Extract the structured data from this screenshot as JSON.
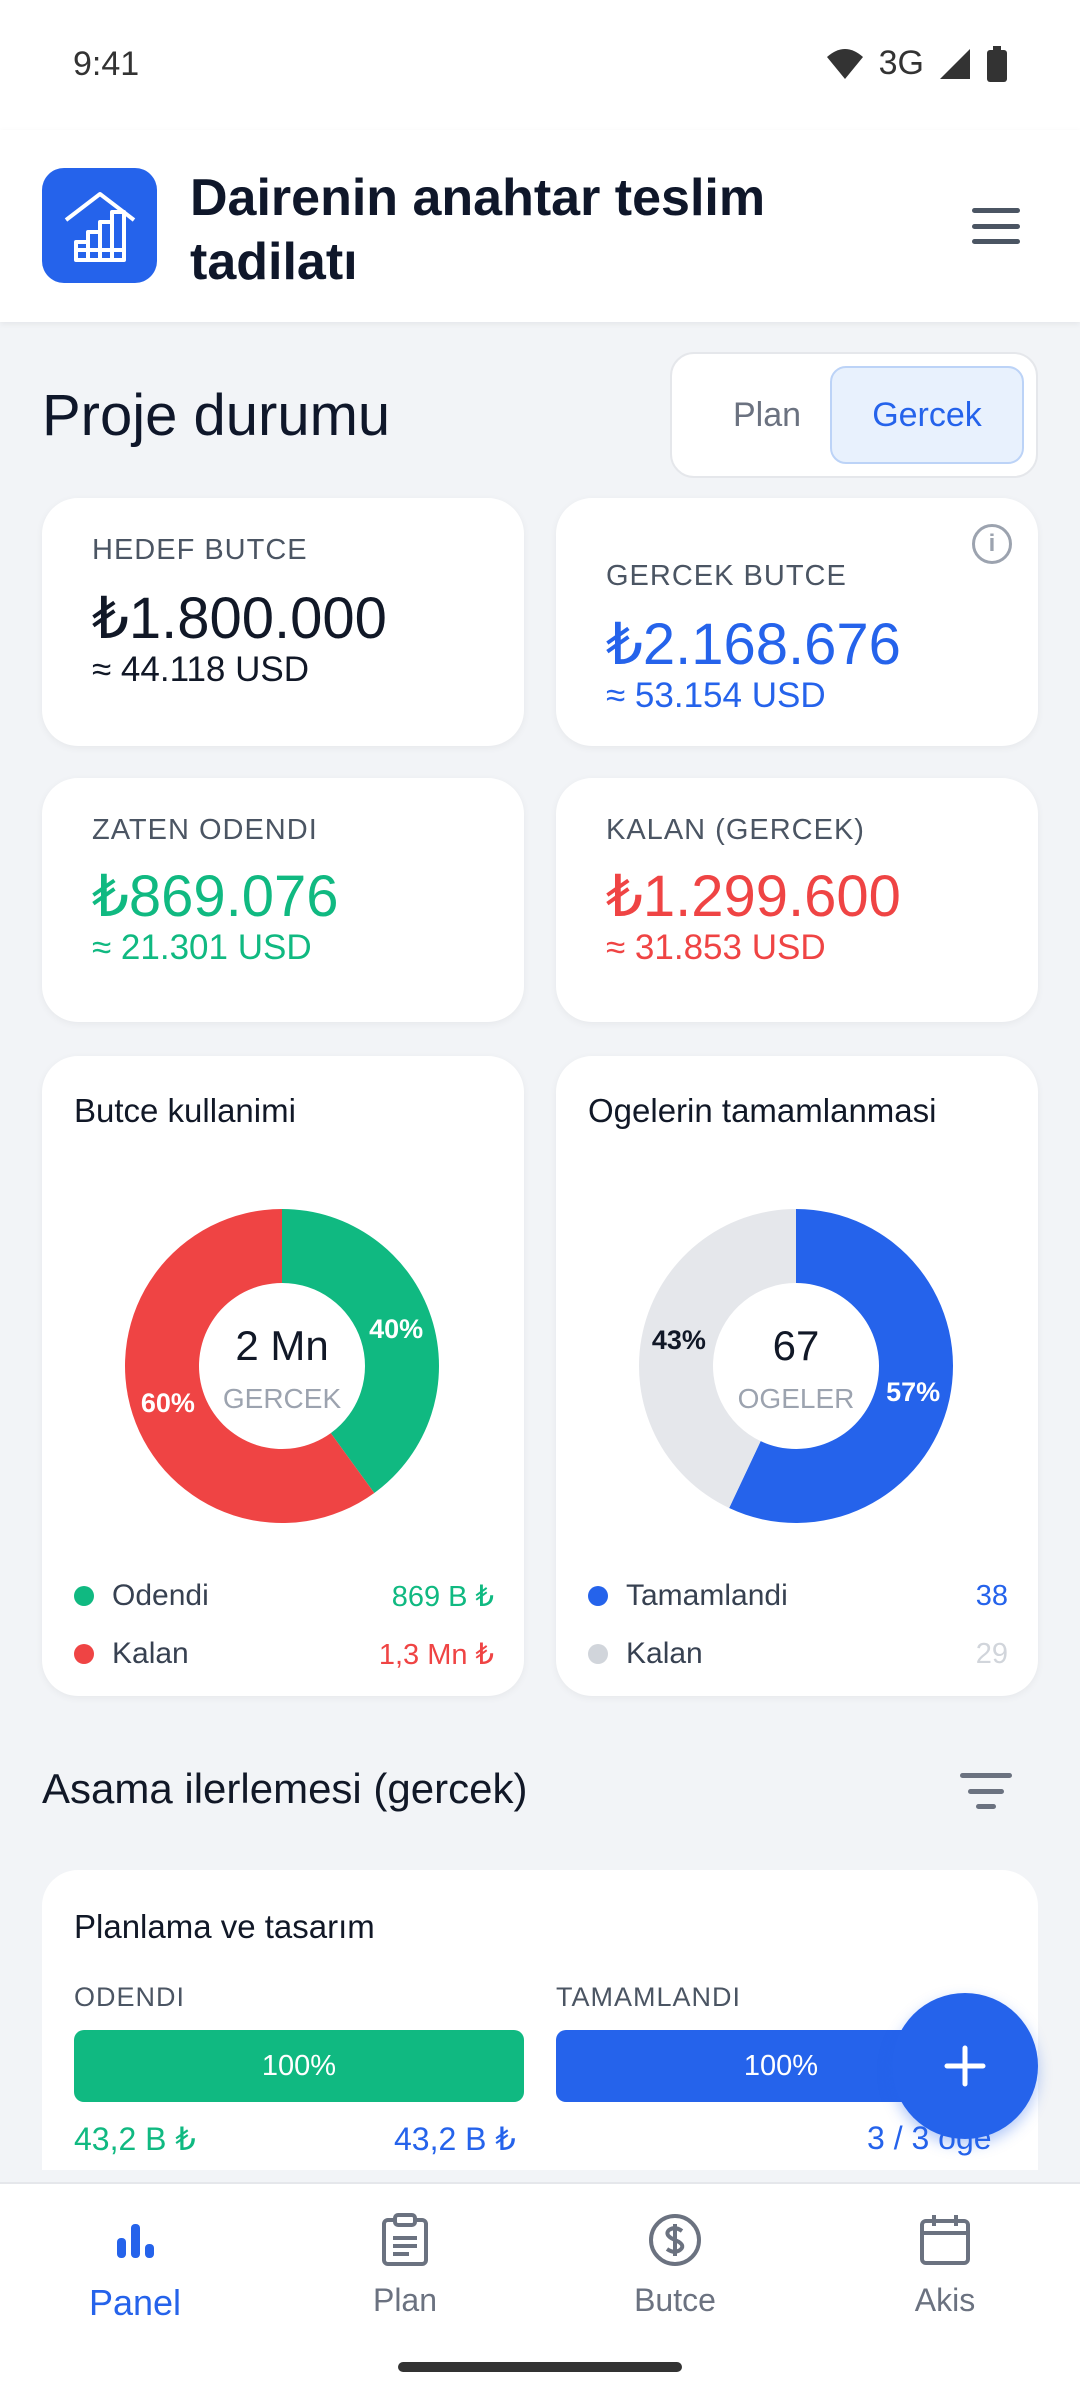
{
  "status_bar": {
    "time": "9:41",
    "network": "3G"
  },
  "header": {
    "title": "Dairenin anahtar teslim tadilatı",
    "logo_icon": "house-chart-icon",
    "menu_icon": "hamburger-menu-icon"
  },
  "overview": {
    "title": "Proje durumu",
    "toggle": {
      "plan_label": "Plan",
      "actual_label": "Gercek",
      "selected": "Gercek"
    }
  },
  "metrics": {
    "target": {
      "label": "HEDEF BUTCE",
      "value": "₺1.800.000",
      "usd": "≈ 44.118 USD",
      "color": "#111827"
    },
    "actual": {
      "label": "GERCEK BUTCE",
      "value": "₺2.168.676",
      "usd": "≈ 53.154 USD",
      "color": "#2563eb"
    },
    "paid": {
      "label": "ZATEN ODENDI",
      "value": "₺869.076",
      "usd": "≈ 21.301 USD",
      "color": "#10b981"
    },
    "remaining": {
      "label": "KALAN (GERCEK)",
      "value": "₺1.299.600",
      "usd": "≈ 31.853 USD",
      "color": "#ef4444"
    }
  },
  "charts": {
    "budget": {
      "title": "Butce kullanimi",
      "center_value": "2 Mn",
      "center_label": "GERCEK",
      "legend": [
        {
          "label": "Odendi",
          "value": "869 B ₺",
          "color": "#10b981"
        },
        {
          "label": "Kalan",
          "value": "1,3 Mn ₺",
          "color": "#ef4444"
        }
      ]
    },
    "items": {
      "title": "Ogelerin tamamlanmasi",
      "center_value": "67",
      "center_label": "OGELER",
      "legend": [
        {
          "label": "Tamamlandi",
          "value": "38",
          "color": "#2563eb"
        },
        {
          "label": "Kalan",
          "value": "29",
          "color": "#d1d5db"
        }
      ]
    }
  },
  "chart_data": [
    {
      "type": "pie",
      "title": "Butce kullanimi",
      "categories": [
        "Odendi",
        "Kalan"
      ],
      "values": [
        40,
        60
      ],
      "unit": "%",
      "colors": [
        "#10b981",
        "#ef4444"
      ],
      "slice_labels": [
        "40%",
        "60%"
      ]
    },
    {
      "type": "pie",
      "title": "Ogelerin tamamlanmasi",
      "categories": [
        "Tamamlandi",
        "Kalan"
      ],
      "values": [
        57,
        43
      ],
      "unit": "%",
      "colors": [
        "#2563eb",
        "#e5e7eb"
      ],
      "slice_labels": [
        "57%",
        "43%"
      ]
    }
  ],
  "phases": {
    "title": "Asama ilerlemesi (gercek)",
    "filter_icon": "filter-icon",
    "items": [
      {
        "name": "Planlama ve tasarım",
        "paid_label": "ODENDI",
        "paid_percent": 100,
        "paid_percent_text": "100%",
        "paid_amount": "43,2 B ₺",
        "total_amount": "43,2 B ₺",
        "done_label": "TAMAMLANDI",
        "done_percent": 100,
        "done_percent_text": "100%",
        "done_count": "3 / 3 oge"
      }
    ]
  },
  "fab": {
    "icon": "plus-icon"
  },
  "bottom_nav": {
    "items": [
      {
        "label": "Panel",
        "icon": "bar-chart-icon",
        "active": true
      },
      {
        "label": "Plan",
        "icon": "clipboard-icon",
        "active": false
      },
      {
        "label": "Butce",
        "icon": "dollar-circle-icon",
        "active": false
      },
      {
        "label": "Akis",
        "icon": "calendar-icon",
        "active": false
      }
    ]
  }
}
